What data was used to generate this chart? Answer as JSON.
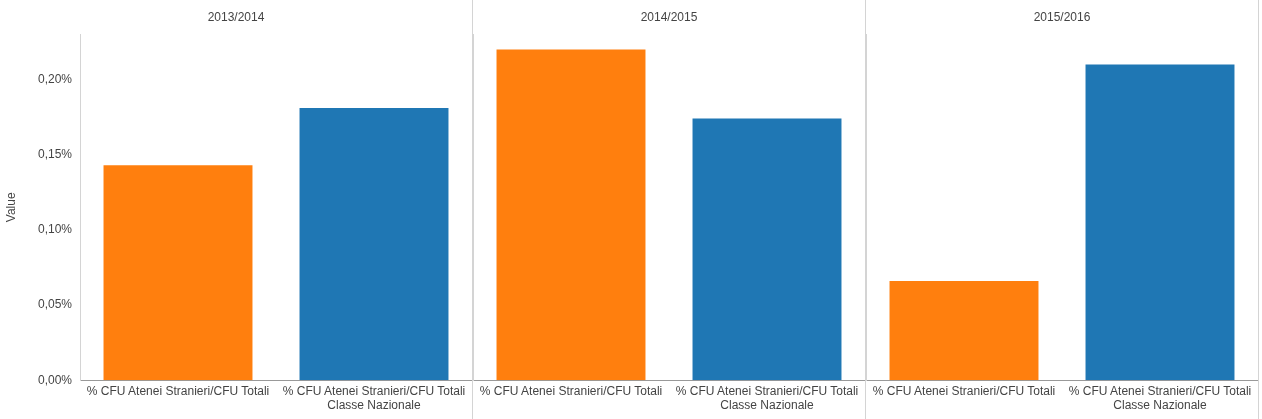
{
  "chart_data": [
    {
      "type": "bar",
      "title": "2013/2014",
      "ylabel": "Value",
      "categories": [
        "% CFU Atenei Stranieri/CFU Totali",
        "% CFU Atenei Stranieri/CFU Totali Classe Nazionale"
      ],
      "values": [
        0.143,
        0.181
      ],
      "colors": [
        "#ff7f0e",
        "#1f77b4"
      ],
      "ylim": [
        0,
        0.23
      ],
      "yticks": [
        {
          "value": 0,
          "label": "0,00%"
        },
        {
          "value": 0.05,
          "label": "0,05%"
        },
        {
          "value": 0.1,
          "label": "0,10%"
        },
        {
          "value": 0.15,
          "label": "0,15%"
        },
        {
          "value": 0.2,
          "label": "0,20%"
        }
      ],
      "grid": false
    },
    {
      "type": "bar",
      "title": "2014/2015",
      "categories": [
        "% CFU Atenei Stranieri/CFU Totali",
        "% CFU Atenei Stranieri/CFU Totali Classe Nazionale"
      ],
      "values": [
        0.22,
        0.174
      ],
      "colors": [
        "#ff7f0e",
        "#1f77b4"
      ],
      "ylim": [
        0,
        0.23
      ],
      "tick_labels": "x",
      "grid": false
    },
    {
      "type": "bar",
      "title": "2015/2016",
      "categories": [
        "% CFU Atenei Stranieri/CFU Totali",
        "% CFU Atenei Stranieri/CFU Totali Classe Nazionale"
      ],
      "values": [
        0.066,
        0.21
      ],
      "colors": [
        "#ff7f0e",
        "#1f77b4"
      ],
      "ylim": [
        0,
        0.23
      ],
      "tick_labels": "x",
      "grid": false
    }
  ]
}
